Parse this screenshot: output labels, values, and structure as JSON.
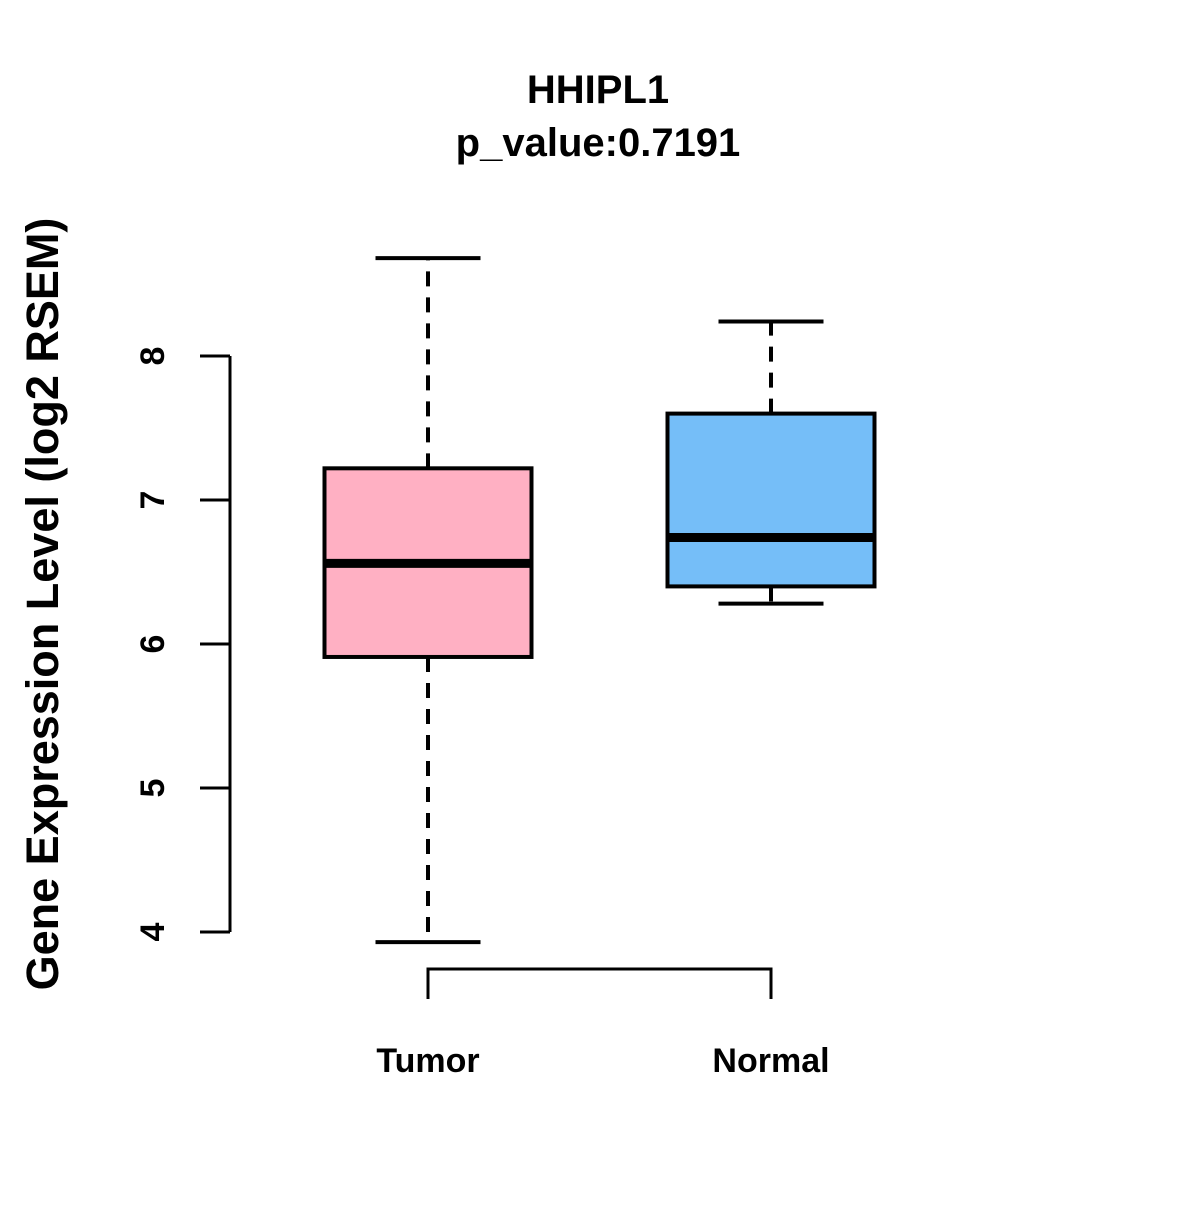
{
  "chart_data": {
    "type": "boxplot",
    "title": "HHIPL1",
    "subtitle": "p_value:0.7191",
    "ylabel": "Gene Expression Level (log2 RSEM)",
    "xlabel": "",
    "ylim": [
      4,
      8
    ],
    "yticks": [
      4,
      5,
      6,
      7,
      8
    ],
    "grid": false,
    "legend": "none",
    "categories": [
      "Tumor",
      "Normal"
    ],
    "series": [
      {
        "name": "Tumor",
        "color": "#ffb0c3",
        "whisker_low": 3.93,
        "q1": 5.91,
        "median": 6.56,
        "q3": 7.22,
        "whisker_high": 8.68
      },
      {
        "name": "Normal",
        "color": "#75bef8",
        "whisker_low": 6.28,
        "q1": 6.4,
        "median": 6.74,
        "q3": 7.6,
        "whisker_high": 8.24
      }
    ],
    "line_color": "#000000",
    "background_color": "#ffffff"
  }
}
